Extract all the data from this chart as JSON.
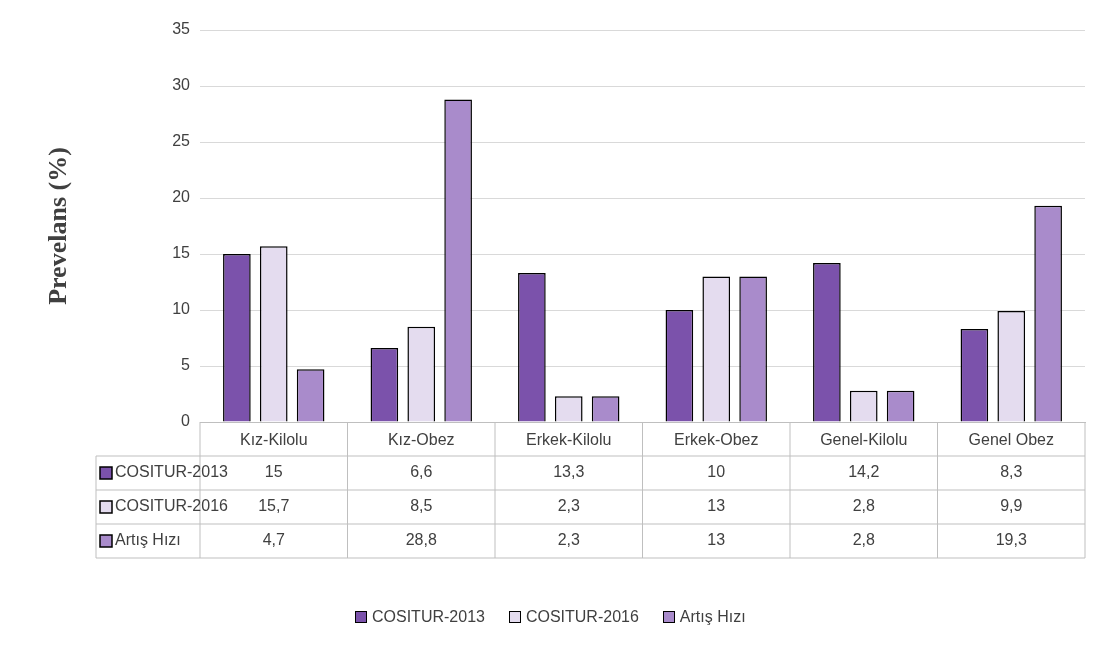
{
  "chart_data": {
    "type": "bar",
    "ylabel": "Prevelans (%)",
    "categories": [
      "Kız-Kilolu",
      "Kız-Obez",
      "Erkek-Kilolu",
      "Erkek-Obez",
      "Genel-Kilolu",
      "Genel Obez"
    ],
    "series": [
      {
        "name": "COSITUR-2013",
        "color": "#7b52ab",
        "values": [
          15,
          6.6,
          13.3,
          10,
          14.2,
          8.3
        ],
        "value_labels": [
          "15",
          "6,6",
          "13,3",
          "10",
          "14,2",
          "8,3"
        ]
      },
      {
        "name": "COSITUR-2016",
        "color": "#e4dcef",
        "values": [
          15.7,
          8.5,
          2.3,
          13,
          2.8,
          9.9
        ],
        "value_labels": [
          "15,7",
          "8,5",
          "2,3",
          "13",
          "2,8",
          "9,9"
        ]
      },
      {
        "name": "Artış Hızı",
        "color": "#a98bcb",
        "values": [
          4.7,
          28.8,
          2.3,
          13,
          2.8,
          19.3
        ],
        "value_labels": [
          "4,7",
          "28,8",
          "2,3",
          "13",
          "2,8",
          "19,3"
        ]
      }
    ],
    "ylim": [
      0,
      35
    ],
    "yticks": [
      0,
      5,
      10,
      15,
      20,
      25,
      30,
      35
    ],
    "grid": "y",
    "legend": "bottom"
  }
}
